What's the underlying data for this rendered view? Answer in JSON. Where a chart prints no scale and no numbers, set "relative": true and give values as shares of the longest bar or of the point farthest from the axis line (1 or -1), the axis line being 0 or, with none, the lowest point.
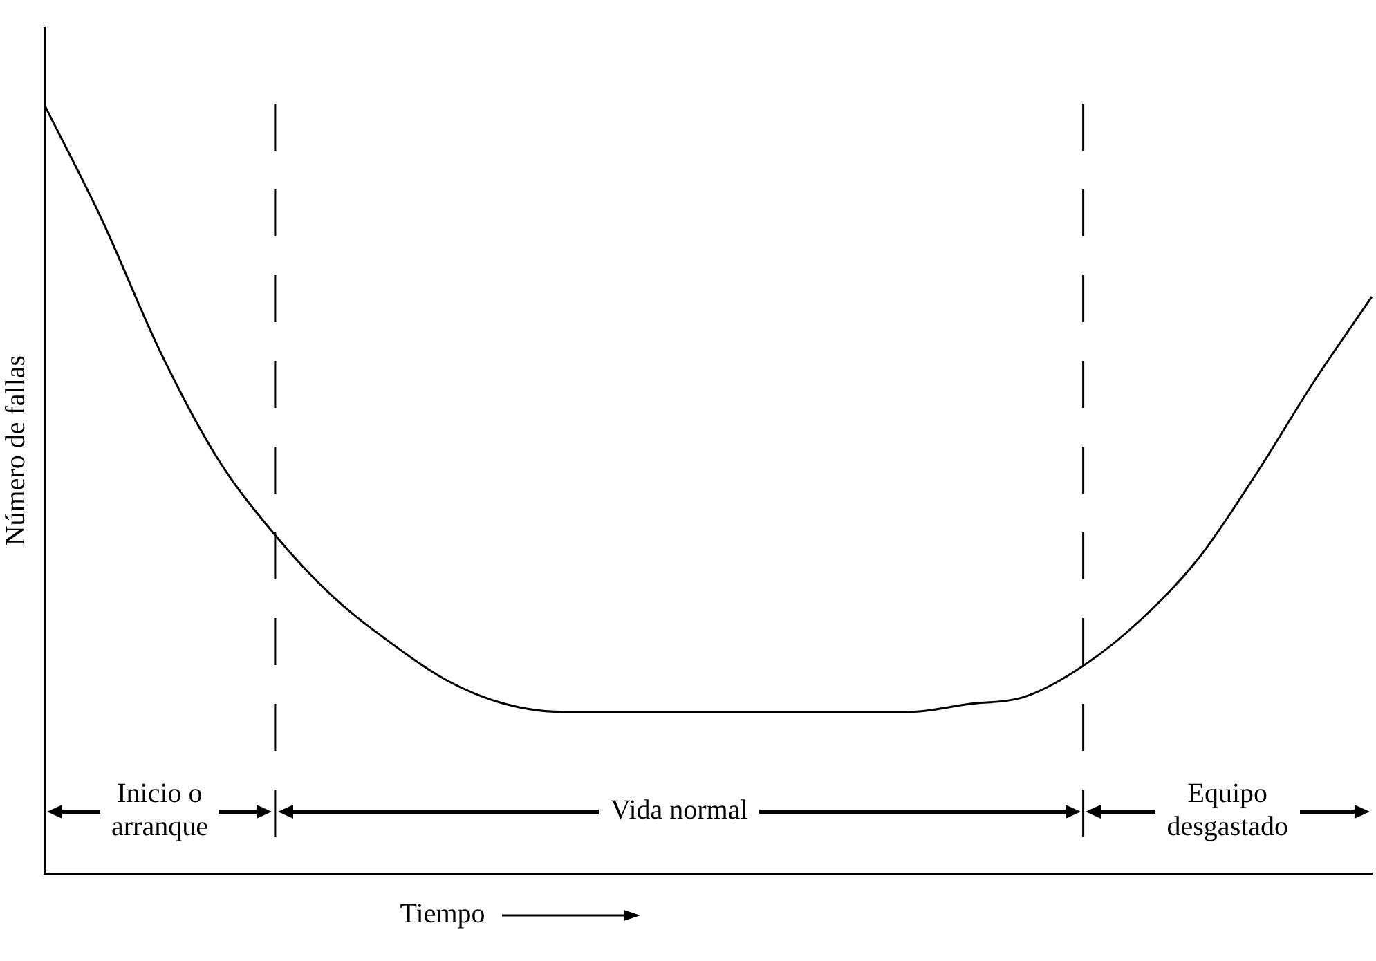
{
  "chart_data": {
    "type": "line",
    "relative": true,
    "xlabel": "Tiempo",
    "ylabel": "Número de fallas",
    "categories": [
      null,
      null,
      null,
      null,
      null,
      null,
      null,
      null,
      null,
      null,
      null,
      null,
      null,
      null,
      null,
      null,
      null,
      null,
      null,
      null,
      null,
      null,
      null,
      null
    ],
    "series": [
      {
        "color": "#000000",
        "values": [
          1.0,
          0.85,
          0.68,
          0.54,
          0.44,
          0.36,
          0.3,
          0.25,
          0.22,
          0.21,
          0.21,
          0.21,
          0.21,
          0.21,
          0.21,
          0.21,
          0.22,
          0.23,
          0.27,
          0.33,
          0.41,
          0.52,
          0.64,
          0.75
        ]
      }
    ],
    "annotations": [
      "Inicio o\narranque",
      "Vida normal",
      "Equipo\ndesgastado"
    ],
    "marker": "none",
    "line_style": "solid",
    "grid": false,
    "legend": false
  }
}
